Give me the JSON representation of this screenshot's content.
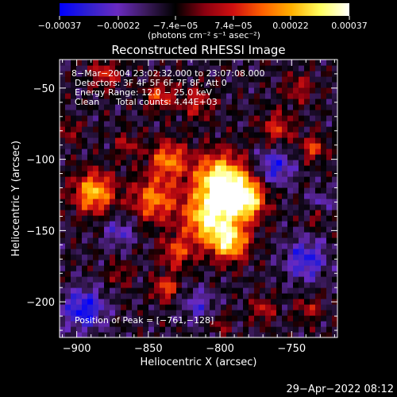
{
  "chart_data": {
    "type": "heatmap",
    "title": "Reconstructed RHESSI Image",
    "xlabel": "Heliocentric X (arcsec)",
    "ylabel": "Heliocentric Y (arcsec)",
    "xlim": [
      -912,
      -718
    ],
    "ylim": [
      -225,
      -30
    ],
    "x_ticks": [
      -900,
      -850,
      -800,
      -750
    ],
    "x_tick_labels": [
      "−900",
      "−850",
      "−800",
      "−750"
    ],
    "y_ticks": [
      -50,
      -100,
      -150,
      -200
    ],
    "y_tick_labels": [
      "−50",
      "−100",
      "−150",
      "−200"
    ],
    "colorbar": {
      "range": [
        -0.00037,
        0.00037
      ],
      "tick_values": [
        -0.00037,
        -0.00022,
        -7.4e-05,
        7.4e-05,
        0.00022,
        0.00037
      ],
      "tick_labels": [
        "−0.00037",
        "−0.00022",
        "−7.4e−05",
        "7.4e−05",
        "0.00022",
        "0.00037"
      ],
      "unit_label": "(photons cm⁻² s⁻¹ asec⁻²)",
      "colormap": [
        "#0000ff",
        "#3020d0",
        "#6a2ac0",
        "#3a1a5a",
        "#000000",
        "#8a0010",
        "#d01010",
        "#ff6000",
        "#ffb000",
        "#ffff60",
        "#ffffff"
      ]
    },
    "peak_position": [
      -761,
      -128
    ],
    "sources": [
      {
        "x": -800,
        "y": -115,
        "amp": 1.0,
        "sigma": 13
      },
      {
        "x": -783,
        "y": -128,
        "amp": 0.95,
        "sigma": 10
      },
      {
        "x": -808,
        "y": -142,
        "amp": 0.85,
        "sigma": 12
      },
      {
        "x": -793,
        "y": -158,
        "amp": 0.8,
        "sigma": 9
      },
      {
        "x": -888,
        "y": -123,
        "amp": 0.75,
        "sigma": 10
      },
      {
        "x": -836,
        "y": -100,
        "amp": 0.6,
        "sigma": 9
      },
      {
        "x": -846,
        "y": -128,
        "amp": 0.6,
        "sigma": 11
      },
      {
        "x": -830,
        "y": -165,
        "amp": 0.45,
        "sigma": 8
      },
      {
        "x": -838,
        "y": -190,
        "amp": 0.5,
        "sigma": 6
      },
      {
        "x": -842,
        "y": -55,
        "amp": 0.45,
        "sigma": 7
      },
      {
        "x": -816,
        "y": -60,
        "amp": 0.35,
        "sigma": 8
      },
      {
        "x": -760,
        "y": -78,
        "amp": 0.4,
        "sigma": 8
      },
      {
        "x": -735,
        "y": -92,
        "amp": 0.45,
        "sigma": 6
      },
      {
        "x": -745,
        "y": -50,
        "amp": 0.3,
        "sigma": 7
      },
      {
        "x": -880,
        "y": -40,
        "amp": 0.4,
        "sigma": 7
      },
      {
        "x": -865,
        "y": -90,
        "amp": 0.3,
        "sigma": 6
      },
      {
        "x": -905,
        "y": -80,
        "amp": 0.3,
        "sigma": 5
      },
      {
        "x": -770,
        "y": -205,
        "amp": 0.35,
        "sigma": 6
      },
      {
        "x": -738,
        "y": -205,
        "amp": 0.3,
        "sigma": 6
      },
      {
        "x": -733,
        "y": -140,
        "amp": 0.25,
        "sigma": 5
      },
      {
        "x": -800,
        "y": -215,
        "amp": 0.25,
        "sigma": 5
      },
      {
        "x": -870,
        "y": -180,
        "amp": 0.25,
        "sigma": 6
      },
      {
        "x": -895,
        "y": -205,
        "amp": -0.55,
        "sigma": 10
      },
      {
        "x": -762,
        "y": -105,
        "amp": -0.45,
        "sigma": 9
      },
      {
        "x": -740,
        "y": -170,
        "amp": -0.45,
        "sigma": 10
      },
      {
        "x": -815,
        "y": -202,
        "amp": -0.3,
        "sigma": 8
      },
      {
        "x": -870,
        "y": -150,
        "amp": -0.3,
        "sigma": 8
      },
      {
        "x": -730,
        "y": -130,
        "amp": -0.25,
        "sigma": 6
      }
    ]
  },
  "annotations": {
    "date_range": "8−Mar−2004 23:02:32.000 to 23:07:08.000",
    "detectors": "Detectors: 3F 4F 5F 6F 7F 8F, Att 0",
    "energy": "Energy Range: 12.0 − 25.0 keV",
    "clean_method": "Clean",
    "total_counts": "Total counts: 4.44E+03",
    "peak": "Position of Peak = [−761,−128]"
  },
  "footer": {
    "timestamp": "29−Apr−2022 08:12"
  }
}
